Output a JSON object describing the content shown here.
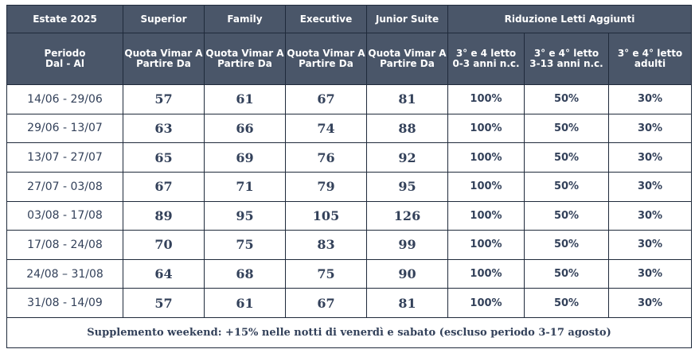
{
  "header": {
    "season": "Estate 2025",
    "rooms": [
      "Superior",
      "Family",
      "Executive",
      "Junior Suite"
    ],
    "reduction_title": "Riduzione Letti Aggiunti",
    "period_label_1": "Periodo",
    "period_label_2": "Dal - Al",
    "quota_label": "Quota Vimar A Partire Da",
    "reductions": [
      {
        "line1": "3° e 4 letto",
        "line2": "0-3 anni n.c."
      },
      {
        "line1": "3° e 4° letto",
        "line2": "3-13 anni n.c."
      },
      {
        "line1": "3° e 4° letto",
        "line2": "adulti"
      }
    ]
  },
  "rows": [
    {
      "period": "14/06 - 29/06",
      "prices": [
        "57",
        "61",
        "67",
        "81"
      ],
      "reductions": [
        "100%",
        "50%",
        "30%"
      ]
    },
    {
      "period": "29/06 - 13/07",
      "prices": [
        "63",
        "66",
        "74",
        "88"
      ],
      "reductions": [
        "100%",
        "50%",
        "30%"
      ]
    },
    {
      "period": "13/07 - 27/07",
      "prices": [
        "65",
        "69",
        "76",
        "92"
      ],
      "reductions": [
        "100%",
        "50%",
        "30%"
      ]
    },
    {
      "period": "27/07 - 03/08",
      "prices": [
        "67",
        "71",
        "79",
        "95"
      ],
      "reductions": [
        "100%",
        "50%",
        "30%"
      ]
    },
    {
      "period": "03/08 - 17/08",
      "prices": [
        "89",
        "95",
        "105",
        "126"
      ],
      "reductions": [
        "100%",
        "50%",
        "30%"
      ]
    },
    {
      "period": "17/08 - 24/08",
      "prices": [
        "70",
        "75",
        "83",
        "99"
      ],
      "reductions": [
        "100%",
        "50%",
        "30%"
      ]
    },
    {
      "period": "24/08 – 31/08",
      "prices": [
        "64",
        "68",
        "75",
        "90"
      ],
      "reductions": [
        "100%",
        "50%",
        "30%"
      ]
    },
    {
      "period": "31/08 - 14/09",
      "prices": [
        "57",
        "61",
        "67",
        "81"
      ],
      "reductions": [
        "100%",
        "50%",
        "30%"
      ]
    }
  ],
  "footer": {
    "note": "Supplemento weekend: +15% nelle notti di venerdì e sabato (escluso periodo 3-17 agosto)"
  },
  "colors": {
    "header_bg": "#4a5669",
    "header_text": "#ffffff",
    "body_text": "#33415a",
    "border": "#1f2a3b"
  }
}
